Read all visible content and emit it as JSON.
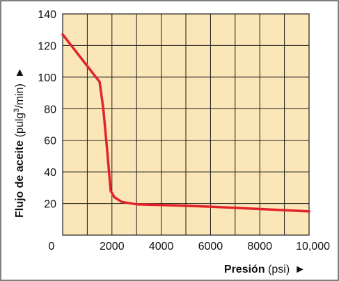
{
  "colors": {
    "plot_background": "#fbe6b7",
    "grid": "#1a1a1a",
    "series": "#e3222b",
    "frame": "#555555",
    "text": "#111111"
  },
  "chart_data": {
    "type": "line",
    "title": "",
    "xlabel": {
      "bold": "Presión",
      "normal": "(psi)",
      "arrow": "►"
    },
    "ylabel": {
      "bold": "Flujo de aceite",
      "normal_before_sup": "(pulg",
      "sup": "3",
      "normal_after_sup": "/min)",
      "arrow": "►"
    },
    "xlim": [
      0,
      10000
    ],
    "ylim": [
      0,
      140
    ],
    "x_gridlines": [
      0,
      1000,
      2000,
      3000,
      4000,
      5000,
      6000,
      7000,
      8000,
      9000,
      10000
    ],
    "y_gridlines": [
      0,
      20,
      40,
      60,
      80,
      100,
      120,
      140
    ],
    "x_ticks": [
      {
        "value": 0,
        "label": "0"
      },
      {
        "value": 2000,
        "label": "2000"
      },
      {
        "value": 4000,
        "label": "4000"
      },
      {
        "value": 6000,
        "label": "6000"
      },
      {
        "value": 8000,
        "label": "8000"
      },
      {
        "value": 10000,
        "label": "10,000"
      }
    ],
    "y_ticks": [
      {
        "value": 20,
        "label": "20"
      },
      {
        "value": 40,
        "label": "40"
      },
      {
        "value": 60,
        "label": "60"
      },
      {
        "value": 80,
        "label": "80"
      },
      {
        "value": 100,
        "label": "100"
      },
      {
        "value": 120,
        "label": "120"
      },
      {
        "value": 140,
        "label": "140"
      }
    ],
    "grid": true,
    "legend": "none",
    "series": [
      {
        "points": [
          {
            "x": 0,
            "y": 127
          },
          {
            "x": 500,
            "y": 117
          },
          {
            "x": 1000,
            "y": 107
          },
          {
            "x": 1500,
            "y": 97
          },
          {
            "x": 1650,
            "y": 80
          },
          {
            "x": 1800,
            "y": 55
          },
          {
            "x": 1950,
            "y": 28
          },
          {
            "x": 2100,
            "y": 24
          },
          {
            "x": 2400,
            "y": 21
          },
          {
            "x": 3000,
            "y": 19.5
          },
          {
            "x": 4000,
            "y": 19
          },
          {
            "x": 6000,
            "y": 18
          },
          {
            "x": 8000,
            "y": 16.5
          },
          {
            "x": 10000,
            "y": 15
          }
        ]
      }
    ]
  }
}
